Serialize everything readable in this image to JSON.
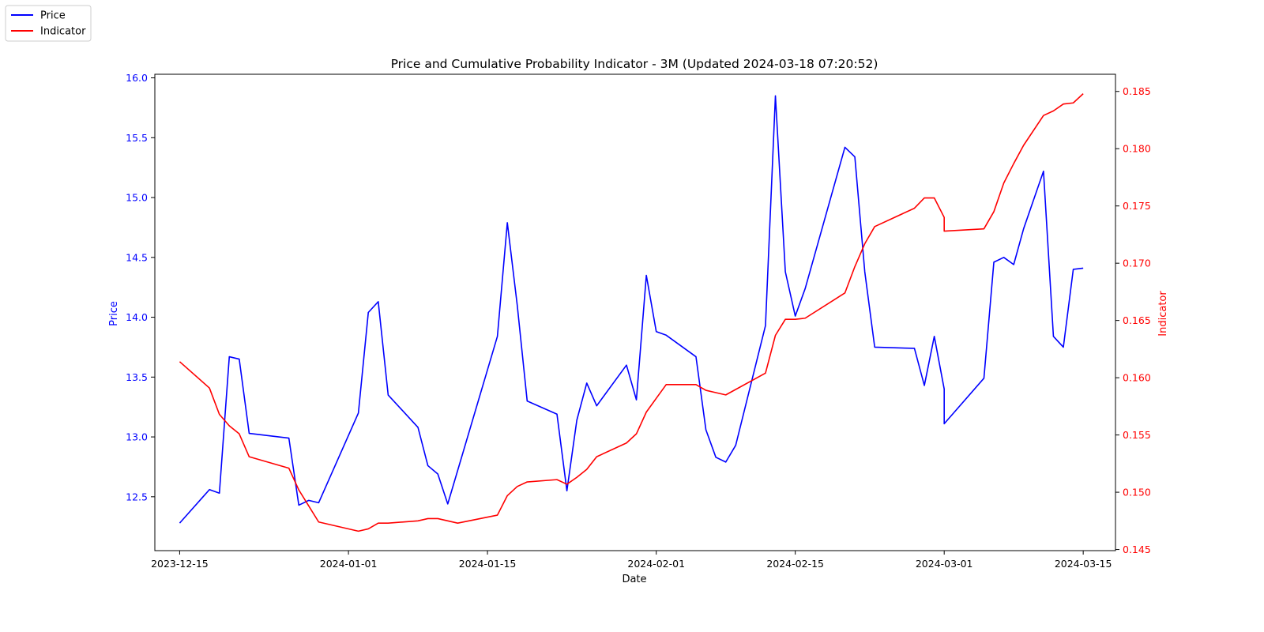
{
  "chart_data": {
    "type": "line",
    "title": "Price and Cumulative Probability Indicator - 3M (Updated 2024-03-18 07:20:52)",
    "xlabel": "Date",
    "ylabel_left": "Price",
    "ylabel_right": "Indicator",
    "x_ticks": [
      "2023-12-15",
      "2024-01-01",
      "2024-01-15",
      "2024-02-01",
      "2024-02-15",
      "2024-03-01",
      "2024-03-15"
    ],
    "ylim_left": [
      12.05,
      16.03
    ],
    "ylim_right": [
      0.1449,
      0.1865
    ],
    "y_ticks_left": [
      "12.5",
      "13.0",
      "13.5",
      "14.0",
      "14.5",
      "15.0",
      "15.5",
      "16.0"
    ],
    "y_ticks_right": [
      "0.145",
      "0.150",
      "0.155",
      "0.160",
      "0.165",
      "0.170",
      "0.175",
      "0.180",
      "0.185"
    ],
    "legend_placement": "top-left",
    "grid": false,
    "colors": {
      "price": "#0000ff",
      "indicator": "#ff0000"
    },
    "series": [
      {
        "name": "Price",
        "axis": "left",
        "points": [
          [
            "2023-12-15",
            12.28
          ],
          [
            "2023-12-18",
            12.56
          ],
          [
            "2023-12-19",
            12.53
          ],
          [
            "2023-12-20",
            13.67
          ],
          [
            "2023-12-21",
            13.65
          ],
          [
            "2023-12-22",
            13.03
          ],
          [
            "2023-12-26",
            12.99
          ],
          [
            "2023-12-27",
            12.43
          ],
          [
            "2023-12-28",
            12.47
          ],
          [
            "2023-12-29",
            12.45
          ],
          [
            "2024-01-02",
            13.2
          ],
          [
            "2024-01-03",
            14.04
          ],
          [
            "2024-01-04",
            14.13
          ],
          [
            "2024-01-05",
            13.35
          ],
          [
            "2024-01-08",
            13.08
          ],
          [
            "2024-01-09",
            12.76
          ],
          [
            "2024-01-10",
            12.69
          ],
          [
            "2024-01-11",
            12.44
          ],
          [
            "2024-01-12",
            12.72
          ],
          [
            "2024-01-16",
            13.84
          ],
          [
            "2024-01-17",
            14.79
          ],
          [
            "2024-01-18",
            14.1
          ],
          [
            "2024-01-19",
            13.3
          ],
          [
            "2024-01-22",
            13.19
          ],
          [
            "2024-01-23",
            12.55
          ],
          [
            "2024-01-24",
            13.14
          ],
          [
            "2024-01-25",
            13.45
          ],
          [
            "2024-01-26",
            13.26
          ],
          [
            "2024-01-29",
            13.6
          ],
          [
            "2024-01-30",
            13.31
          ],
          [
            "2024-01-31",
            14.35
          ],
          [
            "2024-02-01",
            13.88
          ],
          [
            "2024-02-02",
            13.85
          ],
          [
            "2024-02-05",
            13.67
          ],
          [
            "2024-02-06",
            13.06
          ],
          [
            "2024-02-07",
            12.83
          ],
          [
            "2024-02-08",
            12.79
          ],
          [
            "2024-02-09",
            12.93
          ],
          [
            "2024-02-12",
            13.93
          ],
          [
            "2024-02-13",
            15.85
          ],
          [
            "2024-02-14",
            14.38
          ],
          [
            "2024-02-15",
            14.01
          ],
          [
            "2024-02-16",
            14.24
          ],
          [
            "2024-02-20",
            15.42
          ],
          [
            "2024-02-21",
            15.34
          ],
          [
            "2024-02-22",
            14.38
          ],
          [
            "2024-02-23",
            13.75
          ],
          [
            "2024-02-27",
            13.74
          ],
          [
            "2024-02-28",
            13.43
          ],
          [
            "2024-02-29",
            13.84
          ],
          [
            "2024-03-01",
            13.4
          ],
          [
            "2024-03-01",
            13.11
          ],
          [
            "2024-03-05",
            13.49
          ],
          [
            "2024-03-06",
            14.46
          ],
          [
            "2024-03-07",
            14.5
          ],
          [
            "2024-03-08",
            14.44
          ],
          [
            "2024-03-09",
            14.74
          ],
          [
            "2024-03-11",
            15.22
          ],
          [
            "2024-03-12",
            13.84
          ],
          [
            "2024-03-13",
            13.75
          ],
          [
            "2024-03-14",
            14.4
          ],
          [
            "2024-03-15",
            14.41
          ]
        ]
      },
      {
        "name": "Indicator",
        "axis": "right",
        "points": [
          [
            "2023-12-15",
            0.1614
          ],
          [
            "2023-12-18",
            0.1591
          ],
          [
            "2023-12-19",
            0.1568
          ],
          [
            "2023-12-20",
            0.1558
          ],
          [
            "2023-12-21",
            0.1551
          ],
          [
            "2023-12-22",
            0.1531
          ],
          [
            "2023-12-26",
            0.1521
          ],
          [
            "2023-12-27",
            0.1502
          ],
          [
            "2023-12-28",
            0.1488
          ],
          [
            "2023-12-29",
            0.1474
          ],
          [
            "2024-01-02",
            0.1466
          ],
          [
            "2024-01-03",
            0.1468
          ],
          [
            "2024-01-04",
            0.1473
          ],
          [
            "2024-01-05",
            0.1473
          ],
          [
            "2024-01-08",
            0.1475
          ],
          [
            "2024-01-09",
            0.1477
          ],
          [
            "2024-01-10",
            0.1477
          ],
          [
            "2024-01-12",
            0.1473
          ],
          [
            "2024-01-16",
            0.148
          ],
          [
            "2024-01-17",
            0.1497
          ],
          [
            "2024-01-18",
            0.1505
          ],
          [
            "2024-01-19",
            0.1509
          ],
          [
            "2024-01-22",
            0.1511
          ],
          [
            "2024-01-23",
            0.1507
          ],
          [
            "2024-01-24",
            0.1513
          ],
          [
            "2024-01-25",
            0.152
          ],
          [
            "2024-01-26",
            0.1531
          ],
          [
            "2024-01-29",
            0.1543
          ],
          [
            "2024-01-30",
            0.1551
          ],
          [
            "2024-01-31",
            0.157
          ],
          [
            "2024-02-01",
            0.1582
          ],
          [
            "2024-02-02",
            0.1594
          ],
          [
            "2024-02-05",
            0.1594
          ],
          [
            "2024-02-06",
            0.1589
          ],
          [
            "2024-02-07",
            0.1587
          ],
          [
            "2024-02-08",
            0.1585
          ],
          [
            "2024-02-12",
            0.1604
          ],
          [
            "2024-02-13",
            0.1637
          ],
          [
            "2024-02-14",
            0.1651
          ],
          [
            "2024-02-15",
            0.1651
          ],
          [
            "2024-02-16",
            0.1652
          ],
          [
            "2024-02-20",
            0.1674
          ],
          [
            "2024-02-21",
            0.1697
          ],
          [
            "2024-02-22",
            0.1717
          ],
          [
            "2024-02-23",
            0.1732
          ],
          [
            "2024-02-27",
            0.1748
          ],
          [
            "2024-02-28",
            0.1757
          ],
          [
            "2024-02-29",
            0.1757
          ],
          [
            "2024-03-01",
            0.174
          ],
          [
            "2024-03-01",
            0.1728
          ],
          [
            "2024-03-05",
            0.173
          ],
          [
            "2024-03-06",
            0.1745
          ],
          [
            "2024-03-07",
            0.177
          ],
          [
            "2024-03-08",
            0.1787
          ],
          [
            "2024-03-09",
            0.1803
          ],
          [
            "2024-03-11",
            0.1829
          ],
          [
            "2024-03-12",
            0.1833
          ],
          [
            "2024-03-13",
            0.1839
          ],
          [
            "2024-03-14",
            0.184
          ],
          [
            "2024-03-15",
            0.1848
          ]
        ]
      }
    ]
  }
}
